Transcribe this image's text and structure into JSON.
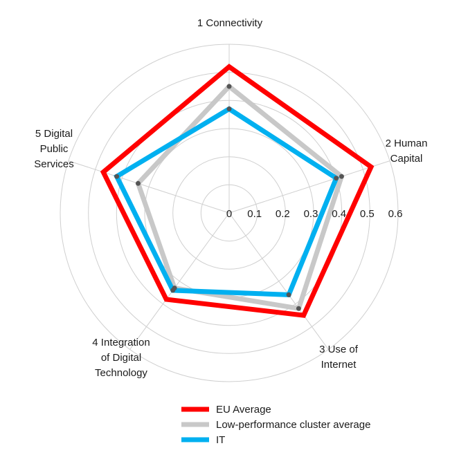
{
  "chart_data": {
    "type": "radar",
    "categories": [
      [
        "1 Connectivity"
      ],
      [
        "2 Human",
        "Capital"
      ],
      [
        "3 Use of",
        "Internet"
      ],
      [
        "4 Integration",
        "of Digital",
        "Technology"
      ],
      [
        "5 Digital",
        "Public",
        "Services"
      ]
    ],
    "radial_ticks": [
      "0",
      "0.1",
      "0.2",
      "0.3",
      "0.4",
      "0.5",
      "0.6"
    ],
    "range": [
      0,
      0.6
    ],
    "grid": true,
    "legend_position": "bottom",
    "series": [
      {
        "name": "EU Average",
        "color": "#ff0000",
        "values": [
          0.52,
          0.53,
          0.45,
          0.38,
          0.47
        ],
        "markers": false
      },
      {
        "name": "Low-performance cluster average",
        "color": "#c8c8c8",
        "values": [
          0.45,
          0.42,
          0.42,
          0.33,
          0.34
        ],
        "markers": true
      },
      {
        "name": "IT",
        "color": "#00b0f0",
        "values": [
          0.37,
          0.4,
          0.36,
          0.34,
          0.42
        ],
        "markers": true
      }
    ]
  }
}
